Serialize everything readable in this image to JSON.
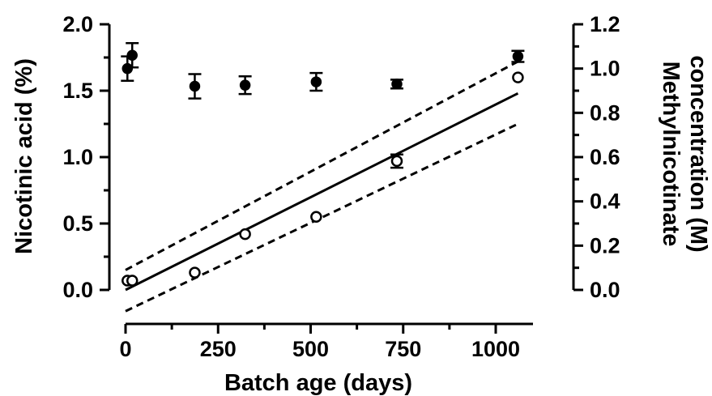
{
  "chart_data": {
    "type": "scatter",
    "title": "",
    "xlabel": "Batch age  (days)",
    "ylabel": "Nicotinic acid (%)",
    "y2label_lines": [
      "Methylnicotinate",
      "concentration (M)"
    ],
    "xlim": [
      0,
      1100
    ],
    "ylim": [
      0,
      2.0
    ],
    "y2lim": [
      0,
      1.2
    ],
    "x_ticks": [
      0,
      250,
      500,
      750,
      1000
    ],
    "x_tick_labels": [
      "0",
      "250",
      "500",
      "750",
      "1000"
    ],
    "y_ticks": [
      0,
      0.5,
      1.0,
      1.5,
      2.0
    ],
    "y_tick_labels": [
      "0.0",
      "0.5",
      "1.0",
      "1.5",
      "2.0"
    ],
    "y2_ticks": [
      0,
      0.2,
      0.4,
      0.6,
      0.8,
      1.0,
      1.2
    ],
    "y2_tick_labels": [
      "0.0",
      "0.2",
      "0.4",
      "0.6",
      "0.8",
      "1.0",
      "1.2"
    ],
    "grid": false,
    "series": [
      {
        "marker": "filled-circle",
        "axis": "right",
        "x": [
          5,
          18,
          187,
          323,
          515,
          733,
          1060
        ],
        "y": [
          1.0,
          1.06,
          0.92,
          0.925,
          0.94,
          0.93,
          1.055
        ],
        "error": [
          0.055,
          0.055,
          0.055,
          0.04,
          0.04,
          0.02,
          0.025
        ]
      },
      {
        "marker": "open-circle",
        "axis": "left",
        "x": [
          5,
          18,
          187,
          323,
          515,
          733,
          1060
        ],
        "y": [
          0.07,
          0.07,
          0.13,
          0.42,
          0.55,
          0.97,
          1.6
        ],
        "error": [
          0,
          0,
          0,
          0,
          0,
          0.05,
          0
        ]
      }
    ],
    "fit_line": {
      "style": "solid",
      "axis": "left",
      "x": [
        0,
        1060
      ],
      "y": [
        0.0,
        1.48
      ]
    },
    "confidence_bands": [
      {
        "style": "dashed",
        "axis": "left",
        "x": [
          0,
          1060
        ],
        "y": [
          0.15,
          1.72
        ]
      },
      {
        "style": "dashed",
        "axis": "left",
        "x": [
          0,
          1060
        ],
        "y": [
          -0.16,
          1.25
        ]
      }
    ]
  }
}
